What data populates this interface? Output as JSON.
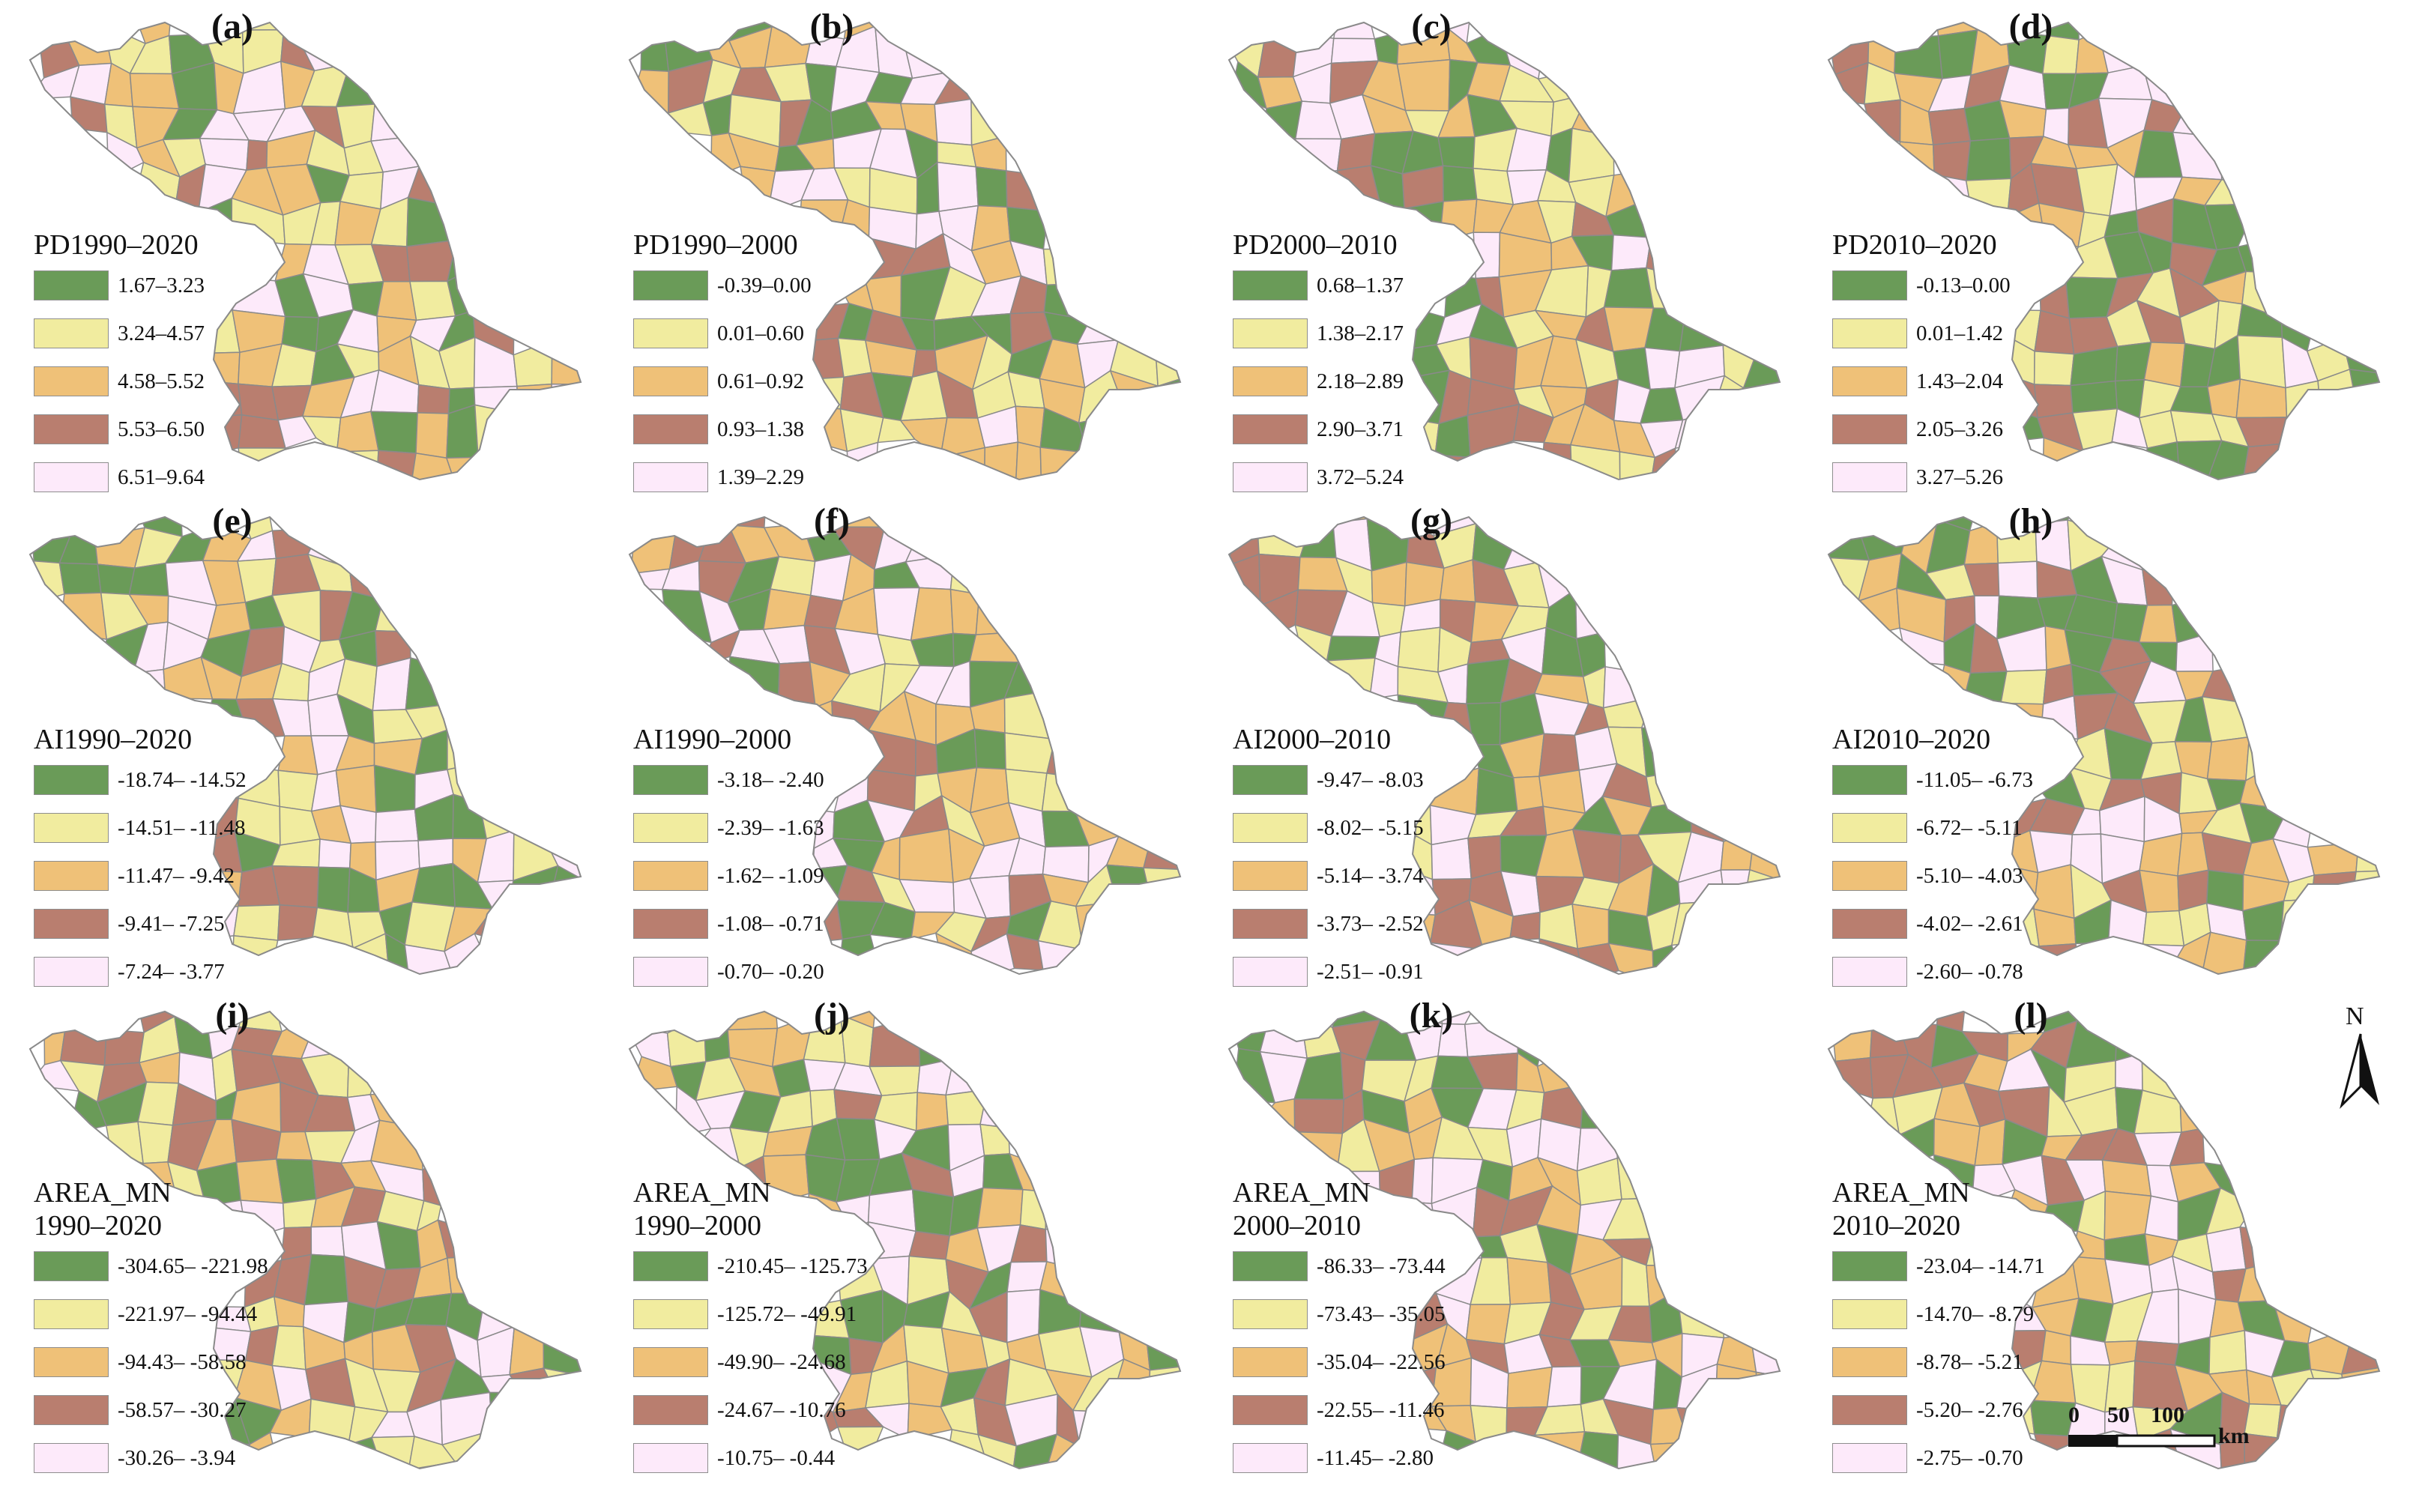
{
  "colors": {
    "class1": "#6a9b58",
    "class2": "#f1ec9f",
    "class3": "#efc178",
    "class4": "#b97e6f",
    "class5": "#fdeafa",
    "border": "#8a8a8a"
  },
  "panels": [
    {
      "id": "a",
      "label": "(a)",
      "legend_title": "PD1990–2020",
      "classes": [
        "1.67–3.23",
        "3.24–4.57",
        "4.58–5.52",
        "5.53–6.50",
        "6.51–9.64"
      ]
    },
    {
      "id": "b",
      "label": "(b)",
      "legend_title": "PD1990–2000",
      "classes": [
        "-0.39–0.00",
        "0.01–0.60",
        "0.61–0.92",
        "0.93–1.38",
        "1.39–2.29"
      ]
    },
    {
      "id": "c",
      "label": "(c)",
      "legend_title": "PD2000–2010",
      "classes": [
        "0.68–1.37",
        "1.38–2.17",
        "2.18–2.89",
        "2.90–3.71",
        "3.72–5.24"
      ]
    },
    {
      "id": "d",
      "label": "(d)",
      "legend_title": "PD2010–2020",
      "classes": [
        "-0.13–0.00",
        "0.01–1.42",
        "1.43–2.04",
        "2.05–3.26",
        "3.27–5.26"
      ]
    },
    {
      "id": "e",
      "label": "(e)",
      "legend_title": "AI1990–2020",
      "classes": [
        "-18.74– -14.52",
        "-14.51– -11.48",
        "-11.47– -9.42",
        "-9.41– -7.25",
        "-7.24– -3.77"
      ]
    },
    {
      "id": "f",
      "label": "(f)",
      "legend_title": "AI1990–2000",
      "classes": [
        "-3.18– -2.40",
        "-2.39– -1.63",
        "-1.62– -1.09",
        "-1.08– -0.71",
        "-0.70– -0.20"
      ]
    },
    {
      "id": "g",
      "label": "(g)",
      "legend_title": "AI2000–2010",
      "classes": [
        "-9.47– -8.03",
        "-8.02– -5.15",
        "-5.14– -3.74",
        "-3.73– -2.52",
        "-2.51– -0.91"
      ]
    },
    {
      "id": "h",
      "label": "(h)",
      "legend_title": "AI2010–2020",
      "classes": [
        "-11.05– -6.73",
        "-6.72– -5.11",
        "-5.10– -4.03",
        "-4.02– -2.61",
        "-2.60– -0.78"
      ]
    },
    {
      "id": "i",
      "label": "(i)",
      "legend_title": "AREA_MN\n1990–2020",
      "classes": [
        "-304.65– -221.98",
        "-221.97– -94.44",
        "-94.43– -58.58",
        "-58.57– -30.27",
        "-30.26– -3.94"
      ]
    },
    {
      "id": "j",
      "label": "(j)",
      "legend_title": "AREA_MN\n1990–2000",
      "classes": [
        "-210.45– -125.73",
        "-125.72– -49.91",
        "-49.90– -24.68",
        "-24.67– -10.76",
        "-10.75– -0.44"
      ]
    },
    {
      "id": "k",
      "label": "(k)",
      "legend_title": "AREA_MN\n2000–2010",
      "classes": [
        "-86.33– -73.44",
        "-73.43– -35.05",
        "-35.04– -22.56",
        "-22.55– -11.46",
        "-11.45– -2.80"
      ]
    },
    {
      "id": "l",
      "label": "(l)",
      "legend_title": "AREA_MN\n2010–2020",
      "classes": [
        "-23.04– -14.71",
        "-14.70– -8.79",
        "-8.78– -5.21",
        "-5.20– -2.76",
        "-2.75– -0.70"
      ]
    }
  ],
  "north_arrow": {
    "letter": "N",
    "icon": "north-arrow-icon"
  },
  "scale_bar": {
    "ticks": [
      "0",
      "50",
      "100"
    ],
    "unit": "km",
    "icon": "scale-bar-icon"
  }
}
